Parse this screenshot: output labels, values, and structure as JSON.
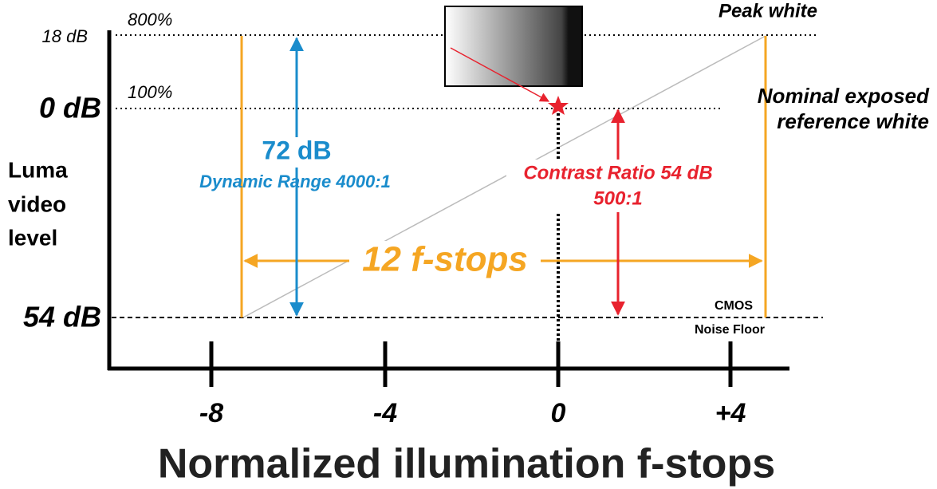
{
  "y_axis": {
    "title": [
      "Luma",
      "video",
      "level"
    ],
    "levels": [
      {
        "db": "18 dB",
        "percent": "800%"
      },
      {
        "db": "0 dB",
        "percent": "100%"
      },
      {
        "db": "54 dB"
      }
    ]
  },
  "x_axis": {
    "title": "Normalized illumination f-stops",
    "ticks": [
      "-8",
      "-4",
      "0",
      "+4"
    ]
  },
  "annotations": {
    "peak": "Peak white",
    "reference": [
      "Nominal exposed",
      "reference white"
    ],
    "noise": [
      "CMOS",
      "Noise Floor"
    ],
    "fstops": "12 f-stops",
    "dynamic_range": [
      "72 dB",
      "Dynamic Range 4000:1"
    ],
    "contrast": [
      "Contrast Ratio 54 dB",
      "500:1"
    ]
  }
}
